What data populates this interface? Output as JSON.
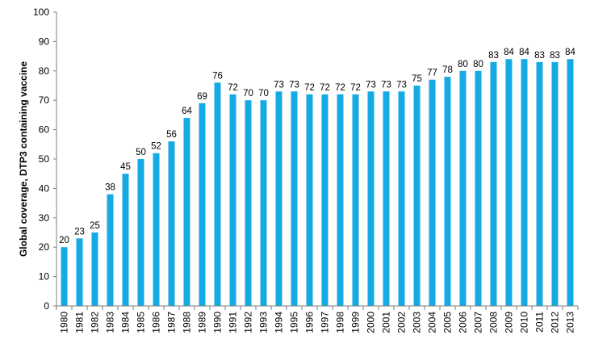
{
  "colors": {
    "bar": "#16aae4",
    "axis": "#7f7f7f",
    "text": "#000000"
  },
  "chart_data": {
    "type": "bar",
    "title": "",
    "xlabel": "",
    "ylabel": "Global coverage, DTP3 containing  vaccine",
    "ylim": [
      0,
      100
    ],
    "yticks": [
      0,
      10,
      20,
      30,
      40,
      50,
      60,
      70,
      80,
      90,
      100
    ],
    "grid": false,
    "legend": "none",
    "categories": [
      "1980",
      "1981",
      "1982",
      "1983",
      "1984",
      "1985",
      "1986",
      "1987",
      "1988",
      "1989",
      "1990",
      "1991",
      "1992",
      "1993",
      "1994",
      "1995",
      "1996",
      "1997",
      "1998",
      "1999",
      "2000",
      "2001",
      "2002",
      "2003",
      "2004",
      "2005",
      "2006",
      "2007",
      "2008",
      "2009",
      "2010",
      "2011",
      "2012",
      "2013"
    ],
    "values": [
      20,
      23,
      25,
      38,
      45,
      50,
      52,
      56,
      64,
      69,
      76,
      72,
      70,
      70,
      73,
      73,
      72,
      72,
      72,
      72,
      73,
      73,
      73,
      75,
      77,
      78,
      80,
      80,
      83,
      84,
      84,
      83,
      83,
      84
    ]
  }
}
